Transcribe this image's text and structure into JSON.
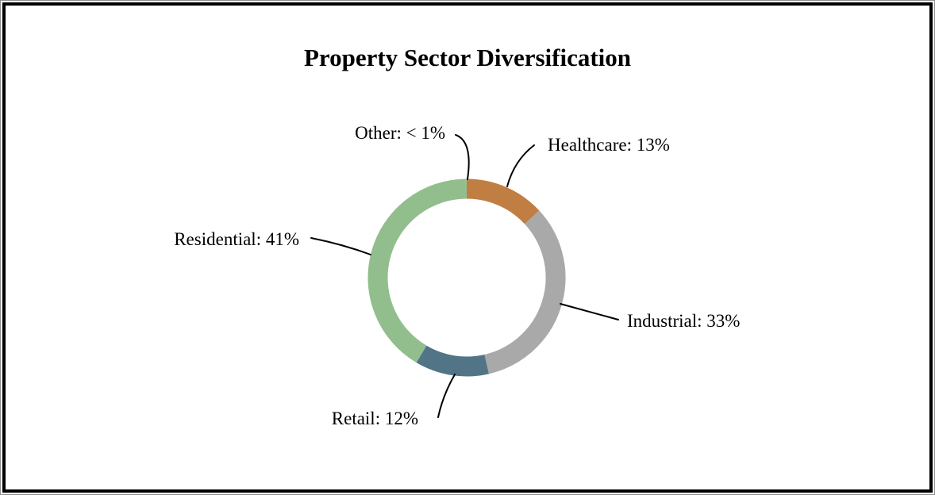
{
  "page": {
    "title": "Property Sector Diversification"
  },
  "chart_data": {
    "type": "pie",
    "subtype": "donut",
    "title": "Property Sector Diversification",
    "unit": "%",
    "direction": "clockwise",
    "start_angle_deg": 0,
    "legend": "none",
    "label_style": "callouts-with-leader-lines",
    "segments": [
      {
        "label": "Healthcare",
        "value": 13,
        "percent_text": "13%",
        "callout": "Healthcare: 13%",
        "color": "#C07E42"
      },
      {
        "label": "Industrial",
        "value": 33,
        "percent_text": "33%",
        "callout": "Industrial: 33%",
        "color": "#A9A9A9"
      },
      {
        "label": "Retail",
        "value": 12,
        "percent_text": "12%",
        "callout": "Retail: 12%",
        "color": "#527487"
      },
      {
        "label": "Residential",
        "value": 41,
        "percent_text": "41%",
        "callout": "Residential: 41%",
        "color": "#92BD8C"
      },
      {
        "label": "Other",
        "value": 0.15,
        "percent_text": "< 1%",
        "callout": "Other: < 1%",
        "color": "#92BD8C"
      }
    ]
  }
}
